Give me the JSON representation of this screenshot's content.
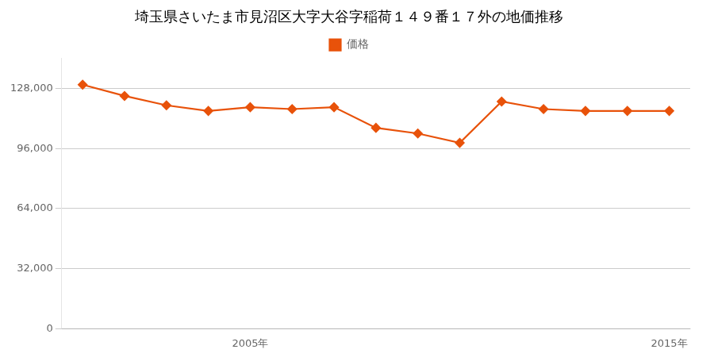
{
  "chart_data": {
    "type": "line",
    "title": "埼玉県さいたま市見沼区大字大谷字稲荷１４９番１７外の地価推移",
    "x": [
      2001,
      2002,
      2003,
      2004,
      2005,
      2006,
      2007,
      2008,
      2009,
      2010,
      2011,
      2012,
      2013,
      2014,
      2015
    ],
    "series": [
      {
        "name": "価格",
        "color": "#E8520A",
        "marker": "diamond",
        "values": [
          130000,
          124000,
          119000,
          116000,
          118000,
          117000,
          118000,
          107000,
          104000,
          99000,
          121000,
          117000,
          116000,
          116000,
          116000
        ]
      }
    ],
    "xlim": [
      2000.5,
      2015.5
    ],
    "xticks": [
      {
        "value": 2005,
        "label": "2005年"
      },
      {
        "value": 2015,
        "label": "2015年"
      }
    ],
    "ylim": [
      0,
      144000
    ],
    "yticks": [
      0,
      {
        "value": 32000,
        "label": "32,000"
      },
      {
        "value": 64000,
        "label": "64,000"
      },
      {
        "value": 96000,
        "label": "96,000"
      },
      {
        "value": 128000,
        "label": "128,000"
      }
    ],
    "grid": "y",
    "legend": "top"
  }
}
